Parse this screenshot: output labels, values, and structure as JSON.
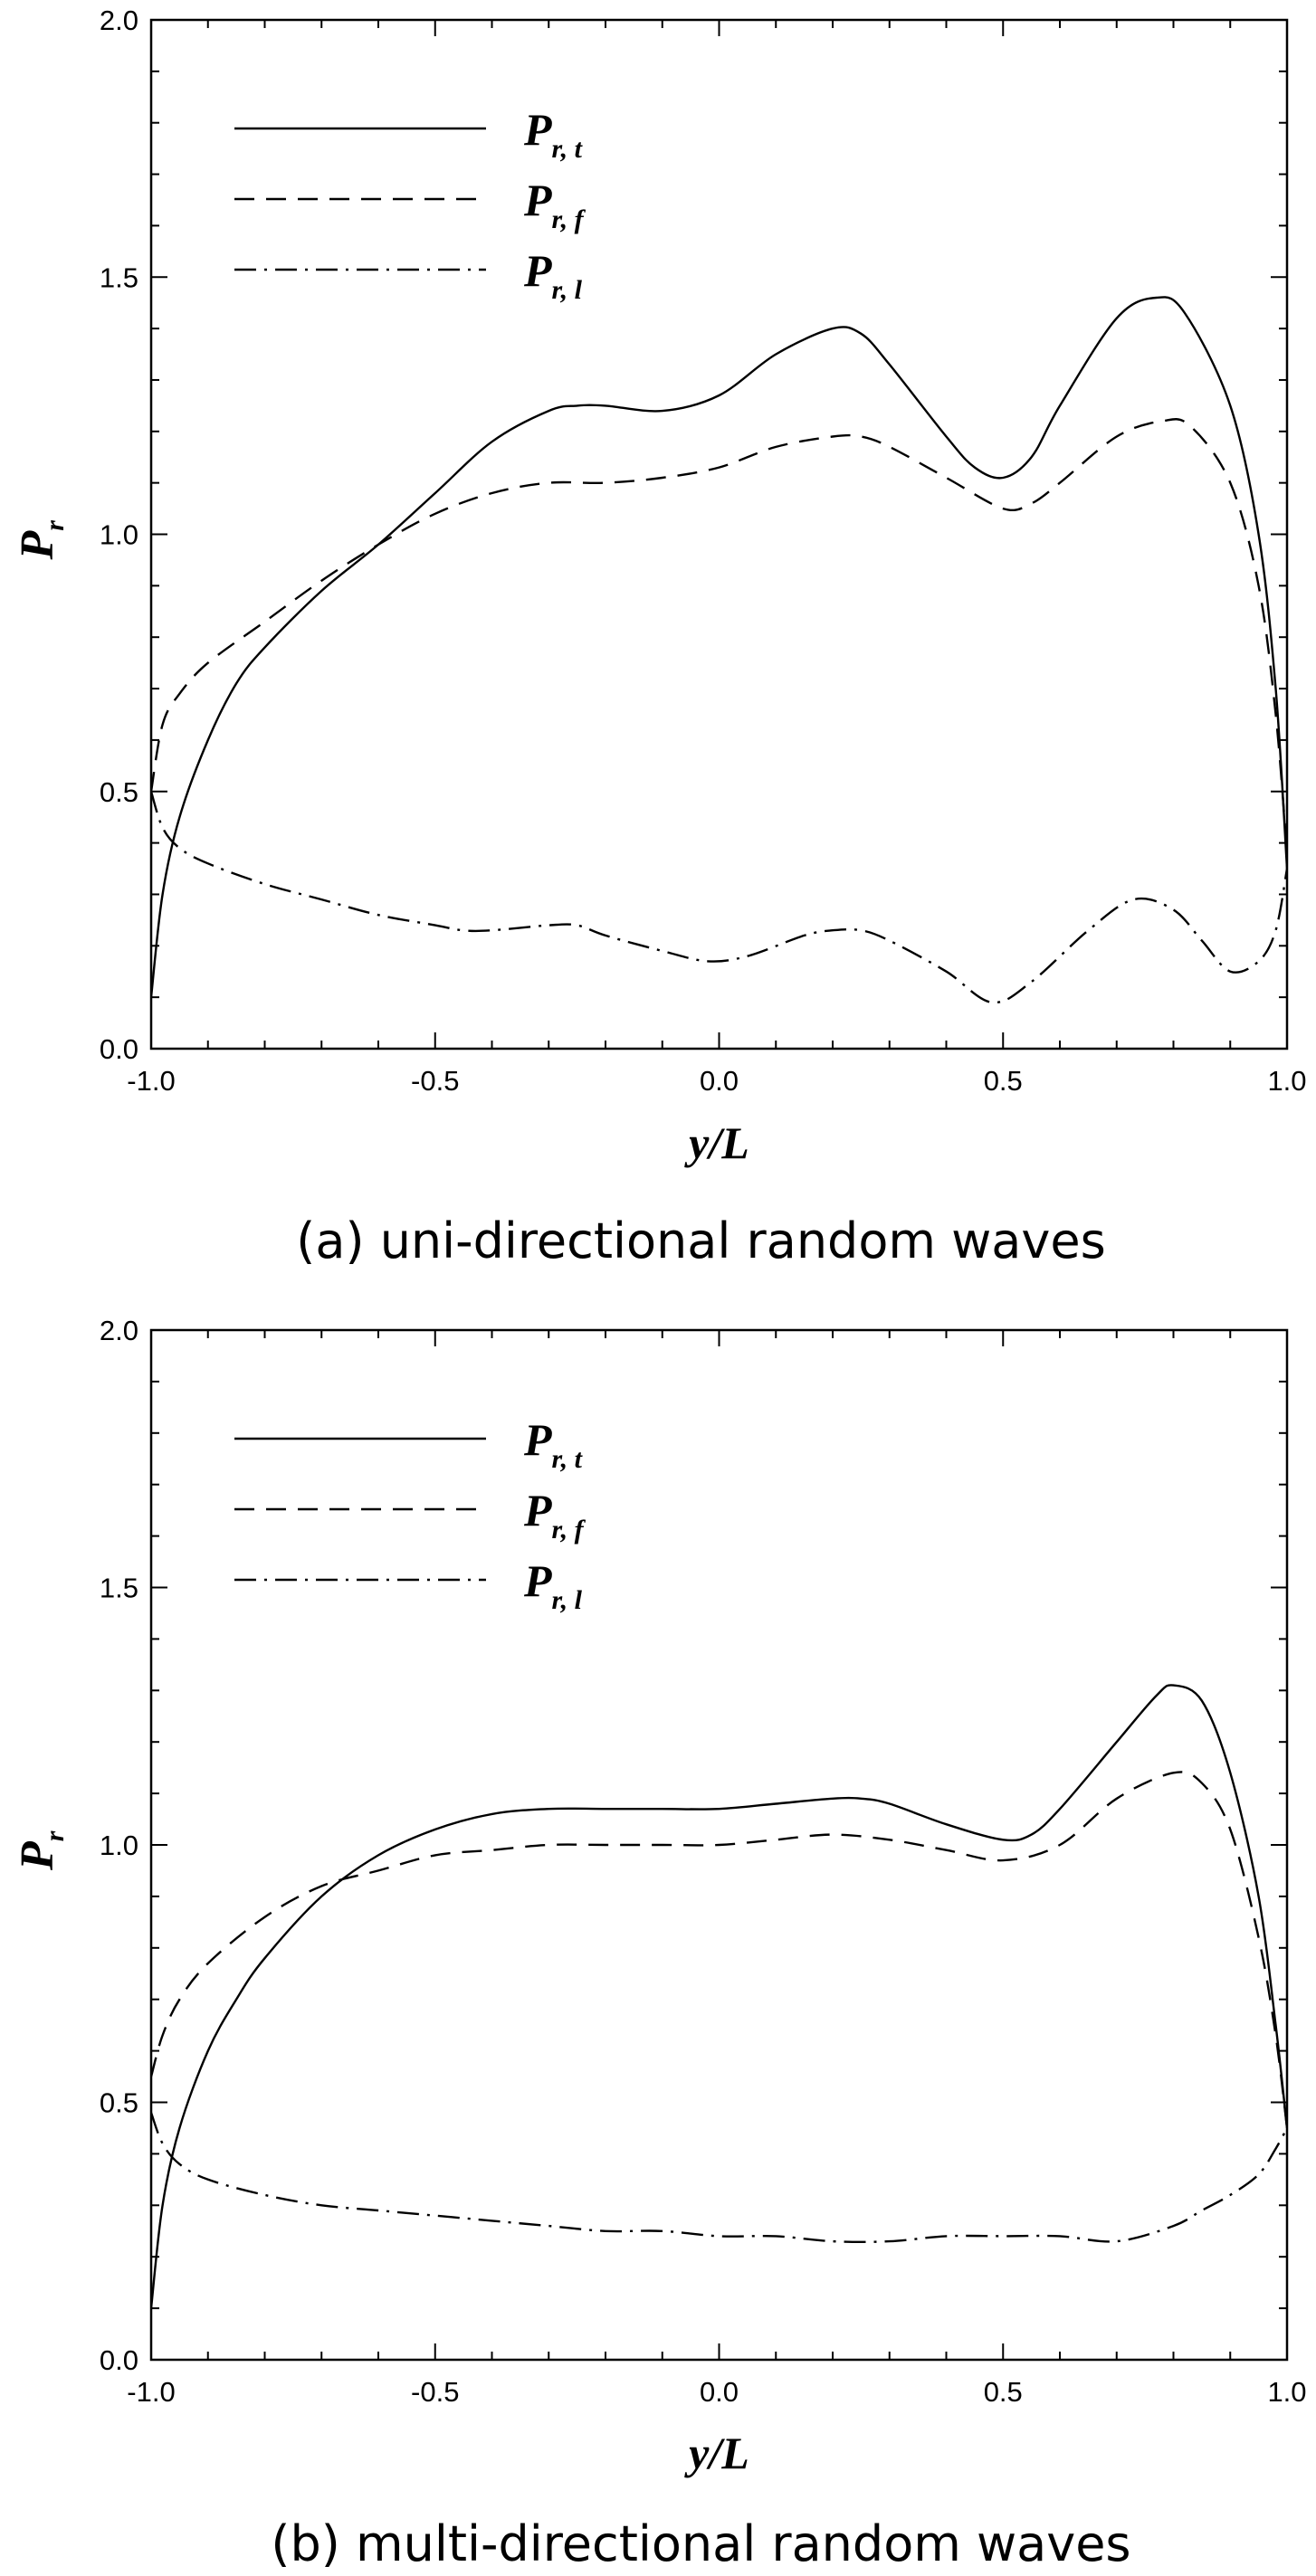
{
  "chart_data": [
    {
      "type": "line",
      "caption": "(a) uni-directional random waves",
      "xlabel": "y/L",
      "ylabel": {
        "main": "P",
        "sub": "r"
      },
      "xlim": [
        -1.0,
        1.0
      ],
      "ylim": [
        0.0,
        2.0
      ],
      "xticks": [
        "-1.0",
        "-0.5",
        "0.0",
        "0.5",
        "1.0"
      ],
      "yticks": [
        "0.0",
        "0.5",
        "1.0",
        "1.5",
        "2.0"
      ],
      "legend_position": "top-left",
      "series": [
        {
          "name": "P_{r,t}",
          "label_main": "P",
          "label_sub": "r, t",
          "style": "solid",
          "x": [
            -1.0,
            -0.98,
            -0.95,
            -0.9,
            -0.85,
            -0.8,
            -0.7,
            -0.6,
            -0.5,
            -0.4,
            -0.3,
            -0.25,
            -0.2,
            -0.1,
            0.0,
            0.1,
            0.2,
            0.25,
            0.3,
            0.4,
            0.45,
            0.5,
            0.55,
            0.6,
            0.7,
            0.77,
            0.82,
            0.9,
            0.95,
            0.98,
            1.0
          ],
          "y": [
            0.1,
            0.3,
            0.45,
            0.6,
            0.71,
            0.78,
            0.89,
            0.98,
            1.08,
            1.18,
            1.24,
            1.25,
            1.25,
            1.24,
            1.27,
            1.35,
            1.4,
            1.39,
            1.33,
            1.19,
            1.13,
            1.11,
            1.15,
            1.25,
            1.42,
            1.46,
            1.43,
            1.25,
            1.0,
            0.7,
            0.35
          ]
        },
        {
          "name": "P_{r,f}",
          "label_main": "P",
          "label_sub": "r, f",
          "style": "dashed",
          "x": [
            -1.0,
            -0.98,
            -0.95,
            -0.9,
            -0.8,
            -0.7,
            -0.6,
            -0.5,
            -0.4,
            -0.3,
            -0.2,
            -0.1,
            0.0,
            0.1,
            0.2,
            0.25,
            0.3,
            0.4,
            0.5,
            0.55,
            0.6,
            0.7,
            0.78,
            0.83,
            0.9,
            0.95,
            0.98,
            1.0
          ],
          "y": [
            0.5,
            0.63,
            0.69,
            0.75,
            0.83,
            0.91,
            0.98,
            1.04,
            1.08,
            1.1,
            1.1,
            1.11,
            1.13,
            1.17,
            1.19,
            1.19,
            1.17,
            1.11,
            1.05,
            1.06,
            1.1,
            1.19,
            1.22,
            1.21,
            1.1,
            0.9,
            0.65,
            0.38
          ]
        },
        {
          "name": "P_{r,l}",
          "label_main": "P",
          "label_sub": "r, l",
          "style": "dashdot",
          "x": [
            -1.0,
            -0.98,
            -0.95,
            -0.9,
            -0.8,
            -0.7,
            -0.6,
            -0.5,
            -0.45,
            -0.4,
            -0.3,
            -0.25,
            -0.2,
            -0.1,
            -0.02,
            0.05,
            0.15,
            0.2,
            0.25,
            0.3,
            0.4,
            0.48,
            0.55,
            0.65,
            0.73,
            0.8,
            0.85,
            0.9,
            0.95,
            0.98,
            1.0
          ],
          "y": [
            0.5,
            0.43,
            0.39,
            0.36,
            0.32,
            0.29,
            0.26,
            0.24,
            0.23,
            0.23,
            0.24,
            0.24,
            0.22,
            0.19,
            0.17,
            0.18,
            0.22,
            0.23,
            0.23,
            0.21,
            0.15,
            0.09,
            0.13,
            0.23,
            0.29,
            0.27,
            0.21,
            0.15,
            0.17,
            0.23,
            0.35
          ]
        }
      ]
    },
    {
      "type": "line",
      "caption": "(b) multi-directional random waves",
      "xlabel": "y/L",
      "ylabel": {
        "main": "P",
        "sub": "r"
      },
      "xlim": [
        -1.0,
        1.0
      ],
      "ylim": [
        0.0,
        2.0
      ],
      "xticks": [
        "-1.0",
        "-0.5",
        "0.0",
        "0.5",
        "1.0"
      ],
      "yticks": [
        "0.0",
        "0.5",
        "1.0",
        "1.5",
        "2.0"
      ],
      "legend_position": "top-left",
      "series": [
        {
          "name": "P_{r,t}",
          "label_main": "P",
          "label_sub": "r, t",
          "style": "solid",
          "x": [
            -1.0,
            -0.98,
            -0.95,
            -0.9,
            -0.85,
            -0.8,
            -0.7,
            -0.6,
            -0.5,
            -0.4,
            -0.3,
            -0.2,
            -0.1,
            0.0,
            0.1,
            0.2,
            0.25,
            0.3,
            0.4,
            0.5,
            0.55,
            0.6,
            0.7,
            0.77,
            0.8,
            0.85,
            0.9,
            0.95,
            0.98,
            1.0
          ],
          "y": [
            0.1,
            0.3,
            0.45,
            0.6,
            0.7,
            0.78,
            0.9,
            0.98,
            1.03,
            1.06,
            1.07,
            1.07,
            1.07,
            1.07,
            1.08,
            1.09,
            1.09,
            1.08,
            1.04,
            1.01,
            1.02,
            1.07,
            1.2,
            1.29,
            1.31,
            1.28,
            1.14,
            0.9,
            0.65,
            0.45
          ]
        },
        {
          "name": "P_{r,f}",
          "label_main": "P",
          "label_sub": "r, f",
          "style": "dashed",
          "x": [
            -1.0,
            -0.98,
            -0.95,
            -0.9,
            -0.8,
            -0.7,
            -0.6,
            -0.5,
            -0.4,
            -0.3,
            -0.2,
            -0.1,
            0.0,
            0.1,
            0.2,
            0.3,
            0.4,
            0.5,
            0.6,
            0.7,
            0.8,
            0.85,
            0.9,
            0.95,
            0.98,
            1.0
          ],
          "y": [
            0.55,
            0.63,
            0.7,
            0.77,
            0.86,
            0.92,
            0.95,
            0.98,
            0.99,
            1.0,
            1.0,
            1.0,
            1.0,
            1.01,
            1.02,
            1.01,
            0.99,
            0.97,
            1.0,
            1.09,
            1.14,
            1.12,
            1.03,
            0.82,
            0.63,
            0.45
          ]
        },
        {
          "name": "P_{r,l}",
          "label_main": "P",
          "label_sub": "r, l",
          "style": "dashdot",
          "x": [
            -1.0,
            -0.98,
            -0.95,
            -0.9,
            -0.8,
            -0.7,
            -0.6,
            -0.5,
            -0.4,
            -0.3,
            -0.2,
            -0.1,
            0.0,
            0.1,
            0.2,
            0.3,
            0.4,
            0.5,
            0.6,
            0.7,
            0.8,
            0.85,
            0.9,
            0.95,
            0.98,
            1.0
          ],
          "y": [
            0.48,
            0.42,
            0.38,
            0.35,
            0.32,
            0.3,
            0.29,
            0.28,
            0.27,
            0.26,
            0.25,
            0.25,
            0.24,
            0.24,
            0.23,
            0.23,
            0.24,
            0.24,
            0.24,
            0.23,
            0.26,
            0.29,
            0.32,
            0.36,
            0.41,
            0.45
          ]
        }
      ]
    }
  ]
}
